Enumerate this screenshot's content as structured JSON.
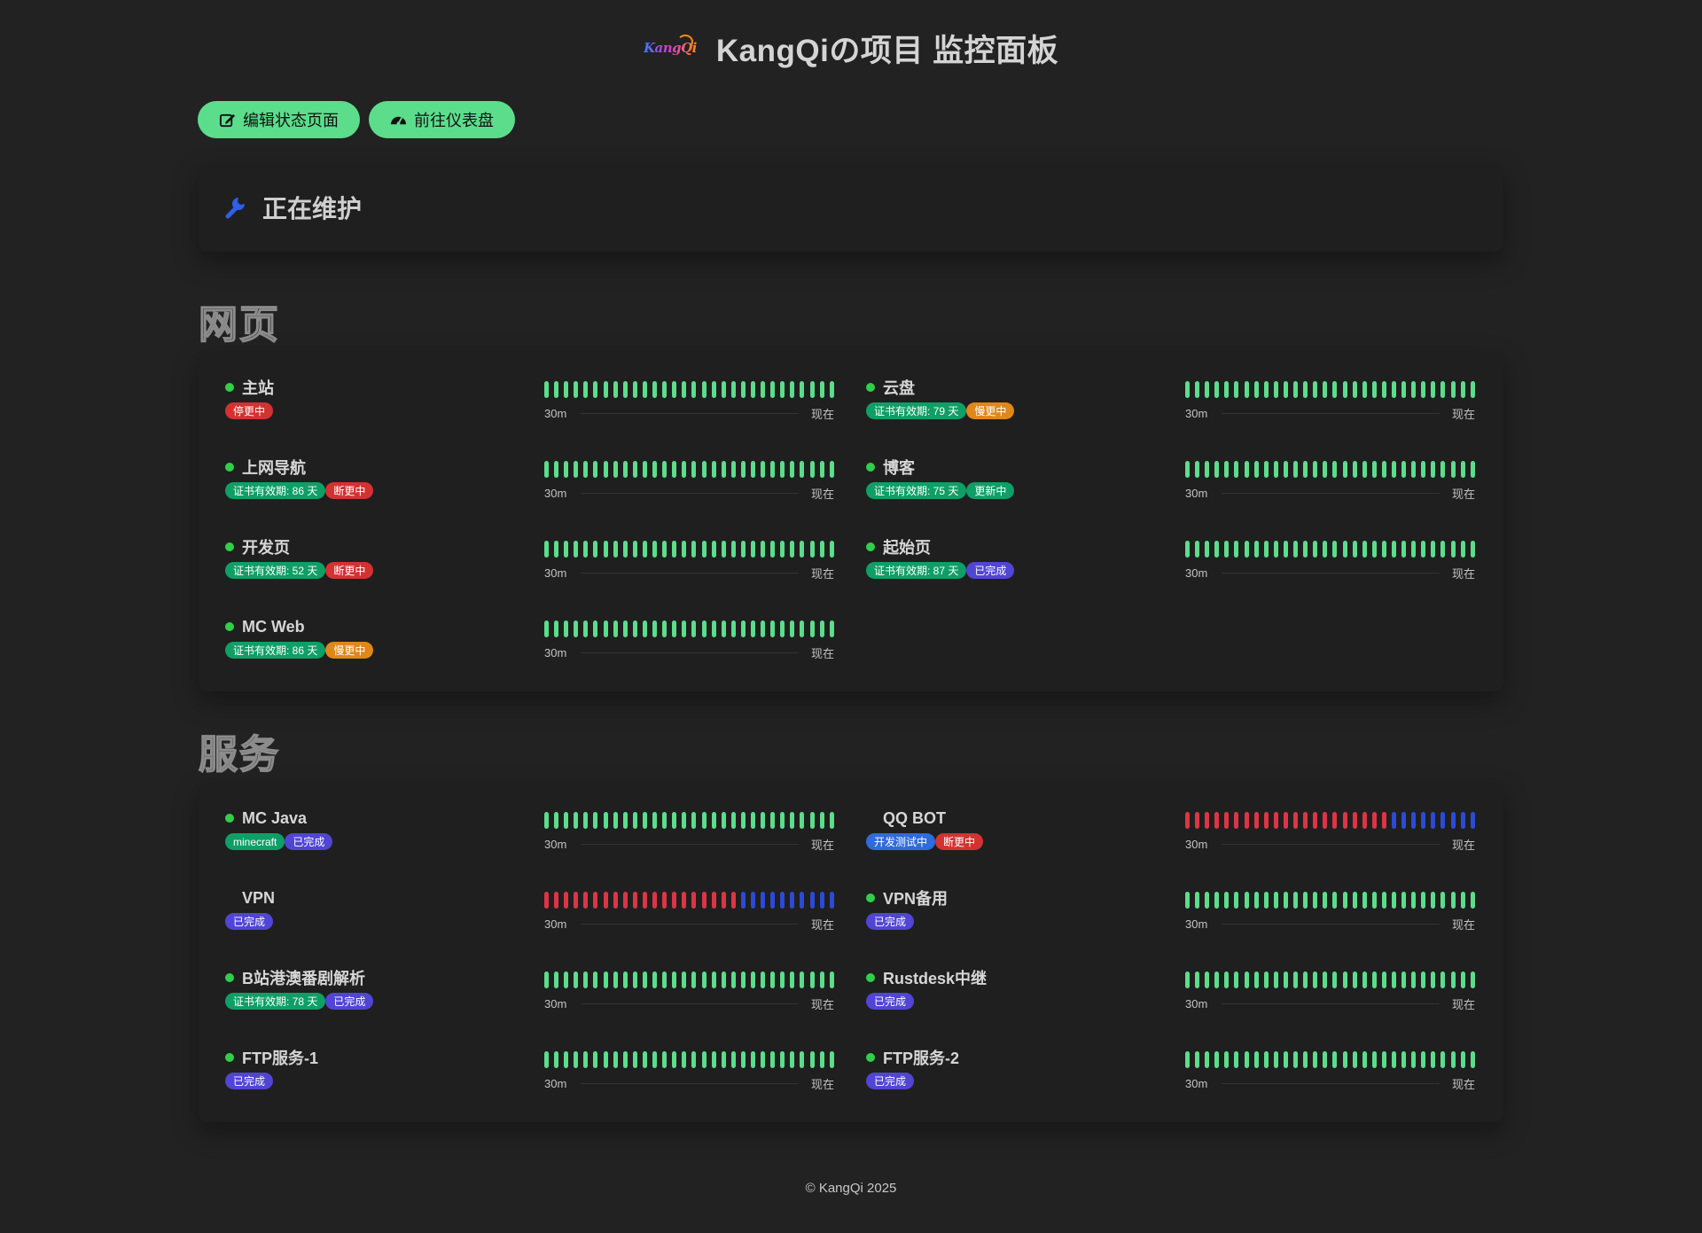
{
  "header": {
    "title": "KangQiの项目 监控面板",
    "logo_text": "KangQi"
  },
  "buttons": {
    "edit": "编辑状态页面",
    "dashboard": "前往仪表盘"
  },
  "maintenance": {
    "title": "正在维护"
  },
  "timeline": {
    "start": "30m",
    "end": "现在"
  },
  "colors": {
    "up": "#5cdd8b",
    "down": "#dc3545",
    "pending": "#2b4ad6",
    "tag_green": "#0f9f66",
    "tag_red": "#d33232",
    "tag_orange": "#e0871a",
    "tag_purple": "#5145d4",
    "tag_blue": "#2f6bdb"
  },
  "groups": [
    {
      "title": "网页",
      "monitors": [
        {
          "name": "主站",
          "status": "up",
          "tags": [
            {
              "label": "停更中",
              "color": "red"
            }
          ],
          "heartbeat": {
            "up": 30
          }
        },
        {
          "name": "云盘",
          "status": "up",
          "tags": [
            {
              "label": "证书有效期: 79 天",
              "color": "green"
            },
            {
              "label": "慢更中",
              "color": "orange"
            }
          ],
          "heartbeat": {
            "up": 30
          }
        },
        {
          "name": "上网导航",
          "status": "up",
          "tags": [
            {
              "label": "证书有效期: 86 天",
              "color": "green"
            },
            {
              "label": "断更中",
              "color": "red"
            }
          ],
          "heartbeat": {
            "up": 30
          }
        },
        {
          "name": "博客",
          "status": "up",
          "tags": [
            {
              "label": "证书有效期: 75 天",
              "color": "green"
            },
            {
              "label": "更新中",
              "color": "green"
            }
          ],
          "heartbeat": {
            "up": 30
          }
        },
        {
          "name": "开发页",
          "status": "up",
          "tags": [
            {
              "label": "证书有效期: 52 天",
              "color": "green"
            },
            {
              "label": "断更中",
              "color": "red"
            }
          ],
          "heartbeat": {
            "up": 30
          }
        },
        {
          "name": "起始页",
          "status": "up",
          "tags": [
            {
              "label": "证书有效期: 87 天",
              "color": "green"
            },
            {
              "label": "已完成",
              "color": "purple"
            }
          ],
          "heartbeat": {
            "up": 30
          }
        },
        {
          "name": "MC Web",
          "status": "up",
          "tags": [
            {
              "label": "证书有效期: 86 天",
              "color": "green"
            },
            {
              "label": "慢更中",
              "color": "orange"
            }
          ],
          "heartbeat": {
            "up": 30
          }
        }
      ]
    },
    {
      "title": "服务",
      "monitors": [
        {
          "name": "MC Java",
          "status": "up",
          "tags": [
            {
              "label": "minecraft",
              "color": "green"
            },
            {
              "label": "已完成",
              "color": "purple"
            }
          ],
          "heartbeat": {
            "up": 30
          }
        },
        {
          "name": "QQ BOT",
          "status": "unknown",
          "tags": [
            {
              "label": "开发测试中",
              "color": "blue"
            },
            {
              "label": "断更中",
              "color": "red"
            }
          ],
          "heartbeat": {
            "down": 21,
            "pending": 9
          }
        },
        {
          "name": "VPN",
          "status": "unknown",
          "tags": [
            {
              "label": "已完成",
              "color": "purple"
            }
          ],
          "heartbeat": {
            "down": 20,
            "pending": 10
          }
        },
        {
          "name": "VPN备用",
          "status": "up",
          "tags": [
            {
              "label": "已完成",
              "color": "purple"
            }
          ],
          "heartbeat": {
            "up": 30
          }
        },
        {
          "name": "B站港澳番剧解析",
          "status": "up",
          "tags": [
            {
              "label": "证书有效期: 78 天",
              "color": "green"
            },
            {
              "label": "已完成",
              "color": "purple"
            }
          ],
          "heartbeat": {
            "up": 30
          }
        },
        {
          "name": "Rustdesk中继",
          "status": "up",
          "tags": [
            {
              "label": "已完成",
              "color": "purple"
            }
          ],
          "heartbeat": {
            "up": 30
          }
        },
        {
          "name": "FTP服务-1",
          "status": "up",
          "tags": [
            {
              "label": "已完成",
              "color": "purple"
            }
          ],
          "heartbeat": {
            "up": 30
          }
        },
        {
          "name": "FTP服务-2",
          "status": "up",
          "tags": [
            {
              "label": "已完成",
              "color": "purple"
            }
          ],
          "heartbeat": {
            "up": 30
          }
        }
      ]
    }
  ],
  "footer": {
    "text": "© KangQi 2025"
  }
}
